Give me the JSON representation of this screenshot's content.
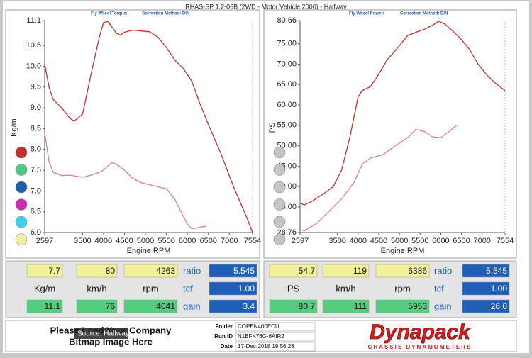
{
  "header": {
    "title": "RHAS-SP 1.2-06B  (2WD - Motor Vehicle 2000) - Halfway"
  },
  "chart_data": [
    {
      "type": "line",
      "subtitle": "Fly Wheel Torque:",
      "correction": "Correction Method: DIN",
      "ylabel": "Kg/m",
      "xlabel": "Engine RPM",
      "xlim": [
        2597,
        7554
      ],
      "xticks": [
        2597,
        3500,
        4000,
        4500,
        5000,
        5500,
        6000,
        6500,
        7000,
        7554
      ],
      "ylim": [
        6.0,
        11.1
      ],
      "yticks": [
        11.1,
        10.5,
        {
          "value": 10,
          "label": "10.0"
        },
        9.5,
        {
          "value": 9,
          "label": "9.0"
        },
        8.5,
        {
          "value": 8,
          "label": "8.0"
        },
        7.5,
        {
          "value": 7,
          "label": "7.0"
        },
        6.5,
        {
          "value": 6,
          "label": "6.0"
        }
      ],
      "series": [
        {
          "color": "#c0302c",
          "x": [
            2597,
            2700,
            2800,
            3000,
            3200,
            3300,
            3500,
            3700,
            3900,
            4000,
            4100,
            4200,
            4300,
            4400,
            4500,
            4700,
            4900,
            5100,
            5300,
            5500,
            5700,
            5900,
            6100,
            6300,
            6500,
            6800,
            7100,
            7400,
            7554
          ],
          "values": [
            10.05,
            9.5,
            9.2,
            9.0,
            8.75,
            8.68,
            8.85,
            9.8,
            10.7,
            11.05,
            11.08,
            10.95,
            10.8,
            10.75,
            10.82,
            10.87,
            10.85,
            10.83,
            10.7,
            10.45,
            10.15,
            9.95,
            9.65,
            9.1,
            8.6,
            7.9,
            7.1,
            6.4,
            6.0
          ]
        },
        {
          "color": "#d98284",
          "x": [
            2597,
            2700,
            2800,
            3000,
            3200,
            3500,
            3700,
            3900,
            4000,
            4100,
            4200,
            4300,
            4500,
            4700,
            4900,
            5100,
            5300,
            5500,
            5700,
            5900,
            6000,
            6100,
            6200,
            6300,
            6450
          ],
          "values": [
            8.4,
            7.7,
            7.45,
            7.37,
            7.38,
            7.33,
            7.38,
            7.45,
            7.5,
            7.6,
            7.68,
            7.65,
            7.5,
            7.3,
            7.2,
            7.15,
            7.1,
            7.05,
            6.8,
            6.4,
            6.2,
            6.1,
            6.1,
            6.13,
            6.15
          ]
        }
      ]
    },
    {
      "type": "line",
      "subtitle": "Fly Wheel Power:",
      "correction": "Correction Method: DIN",
      "ylabel": "PS",
      "xlabel": "Engine RPM",
      "xlim": [
        2597,
        7554
      ],
      "xticks": [
        2597,
        3500,
        4000,
        4500,
        5000,
        5500,
        6000,
        6500,
        7000,
        7554
      ],
      "ylim": [
        28.76,
        80.66
      ],
      "yticks": [
        80.66,
        {
          "value": 75,
          "label": "75.00"
        },
        {
          "value": 70,
          "label": "70.00"
        },
        {
          "value": 65,
          "label": "65.00"
        },
        {
          "value": 60,
          "label": "60.00"
        },
        {
          "value": 55,
          "label": "55.00"
        },
        {
          "value": 50,
          "label": "50.00"
        },
        {
          "value": 45,
          "label": "45.00"
        },
        {
          "value": 40,
          "label": "40.00"
        },
        {
          "value": 35,
          "label": "35.00"
        },
        28.76
      ],
      "series": [
        {
          "color": "#c0302c",
          "x": [
            2597,
            2700,
            2900,
            3200,
            3400,
            3600,
            3800,
            4000,
            4100,
            4300,
            4500,
            4700,
            5000,
            5200,
            5400,
            5600,
            5800,
            5950,
            6100,
            6300,
            6500,
            6700,
            6900,
            7100,
            7300,
            7554
          ],
          "values": [
            36,
            35.5,
            36.5,
            38.5,
            40,
            44,
            52,
            62,
            63.5,
            64.5,
            67.5,
            71,
            74.5,
            77,
            77.8,
            78.5,
            79.5,
            80.5,
            79.8,
            78,
            76,
            73.5,
            70,
            67.5,
            65.5,
            63.5
          ]
        },
        {
          "color": "#d98284",
          "x": [
            2597,
            2700,
            3000,
            3300,
            3600,
            3900,
            4100,
            4300,
            4600,
            4900,
            5200,
            5400,
            5600,
            5800,
            6000,
            6200,
            6386
          ],
          "values": [
            29.5,
            29.2,
            31,
            34,
            37,
            41,
            45.5,
            47,
            47.8,
            50,
            52,
            54,
            53.5,
            52.2,
            52,
            53.5,
            55
          ]
        }
      ]
    }
  ],
  "panels": [
    {
      "rows": [
        [
          "7.7",
          "80",
          "4263",
          "ratio",
          "5.545"
        ],
        [
          "Kg/m",
          "km/h",
          "rpm",
          "tcf",
          "1.00"
        ],
        [
          "11.1",
          "76",
          "4041",
          "gain",
          "3.4"
        ]
      ]
    },
    {
      "rows": [
        [
          "54.7",
          "119",
          "6386",
          "ratio",
          "5.545"
        ],
        [
          "PS",
          "km/h",
          "rpm",
          "tcf",
          "1.00"
        ],
        [
          "80.7",
          "111",
          "5953",
          "gain",
          "26.0"
        ]
      ]
    }
  ],
  "footer": {
    "company": [
      "Please Load Your Company",
      "Bitmap Image Here"
    ],
    "source": "Source: Halfway",
    "fields": [
      {
        "label": "Folder",
        "value": "COPEN400ECU"
      },
      {
        "label": "Run ID",
        "value": "N1BFK76G-6AIR2"
      },
      {
        "label": "Date",
        "value": "17-Dec-2018   19:56:28"
      }
    ],
    "logo": "Dynapack",
    "logo_sub": "CHASSIS DYNAMOMETERS"
  }
}
